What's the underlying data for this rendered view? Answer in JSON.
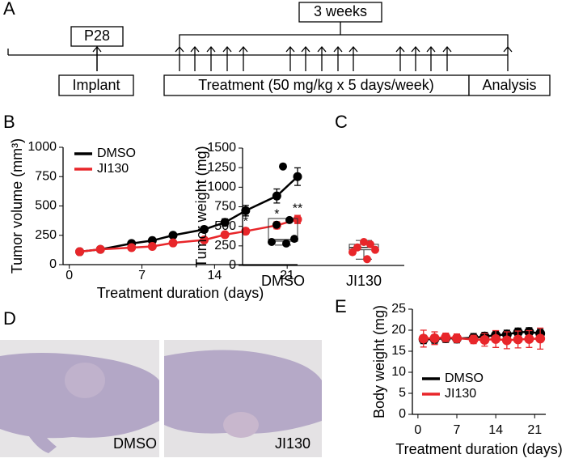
{
  "panel_labels": [
    "A",
    "B",
    "C",
    "D",
    "E"
  ],
  "timeline": {
    "age": "P28",
    "duration": "3 weeks",
    "stages": [
      "Implant",
      "Treatment (50 mg/kg x 5 days/week)",
      "Analysis"
    ]
  },
  "chart_data": [
    {
      "type": "line",
      "xlabel": "Treatment duration (days)",
      "ylabel": "Tumor volume (mm³)",
      "x": [
        1,
        3,
        6,
        8,
        10,
        13,
        15,
        17,
        20,
        22
      ],
      "series": [
        {
          "name": "DMSO",
          "color": "#000000",
          "values": [
            110,
            130,
            180,
            205,
            250,
            300,
            360,
            460,
            585,
            750
          ],
          "errors": [
            20,
            15,
            20,
            20,
            20,
            25,
            30,
            45,
            60,
            75
          ]
        },
        {
          "name": "JI130",
          "color": "#e8262a",
          "values": [
            110,
            130,
            145,
            155,
            185,
            210,
            255,
            285,
            335,
            385
          ],
          "errors": [
            15,
            15,
            15,
            15,
            15,
            20,
            20,
            25,
            30,
            35
          ]
        }
      ],
      "annotations": [
        {
          "text": "*",
          "x": 17,
          "y": 365
        },
        {
          "text": "*",
          "x": 20,
          "y": 425
        },
        {
          "text": "**",
          "x": 22,
          "y": 475
        }
      ],
      "xlim": [
        -0.6,
        22
      ],
      "xticks": [
        0,
        7,
        14,
        21
      ],
      "ylim": [
        0,
        1000
      ],
      "yticks": [
        0,
        250,
        500,
        750,
        1000
      ],
      "legend": "upper left"
    },
    {
      "type": "box",
      "ylabel": "Tumor weight (mg)",
      "categories": [
        "DMSO",
        "JI130"
      ],
      "colors": [
        "#000000",
        "#e8262a"
      ],
      "points": [
        [
          1265,
          580,
          520,
          340,
          300,
          280
        ],
        [
          300,
          270,
          230,
          200,
          170,
          80
        ]
      ],
      "boxes": [
        {
          "low": 260,
          "q1": 310,
          "median": 330,
          "q3": 600,
          "high": 600
        },
        {
          "low": 80,
          "q1": 200,
          "median": 230,
          "q3": 270,
          "high": 320
        }
      ],
      "ylim": [
        0,
        1500
      ],
      "yticks": [
        0,
        250,
        500,
        750,
        1000,
        1250,
        1500
      ]
    },
    {
      "type": "line",
      "xlabel": "Treatment duration (days)",
      "ylabel": "Body weight (mg)",
      "x": [
        1,
        3,
        5,
        7,
        10,
        12,
        14,
        16,
        18,
        20,
        22
      ],
      "series": [
        {
          "name": "DMSO",
          "color": "#000000",
          "values": [
            17.8,
            17.9,
            18.1,
            18.0,
            18.2,
            18.5,
            18.8,
            19.0,
            19.5,
            19.6,
            19.2
          ],
          "errors": [
            1,
            1,
            1,
            1,
            1,
            1,
            1,
            1,
            1,
            1,
            1
          ]
        },
        {
          "name": "JI130",
          "color": "#e8262a",
          "values": [
            18.0,
            18.1,
            18.3,
            18.1,
            17.8,
            17.7,
            17.9,
            17.6,
            17.8,
            17.9,
            18.0
          ],
          "errors": [
            2,
            1.5,
            1,
            1,
            1,
            1.5,
            2,
            2,
            2,
            2,
            2.5
          ]
        }
      ],
      "xlim": [
        -1,
        23
      ],
      "xticks": [
        0,
        7,
        14,
        21
      ],
      "ylim": [
        0,
        25
      ],
      "yticks": [
        0,
        5,
        10,
        15,
        20,
        25
      ],
      "legend": "lower left"
    }
  ],
  "photos": {
    "labels": [
      "DMSO",
      "JI130"
    ]
  }
}
